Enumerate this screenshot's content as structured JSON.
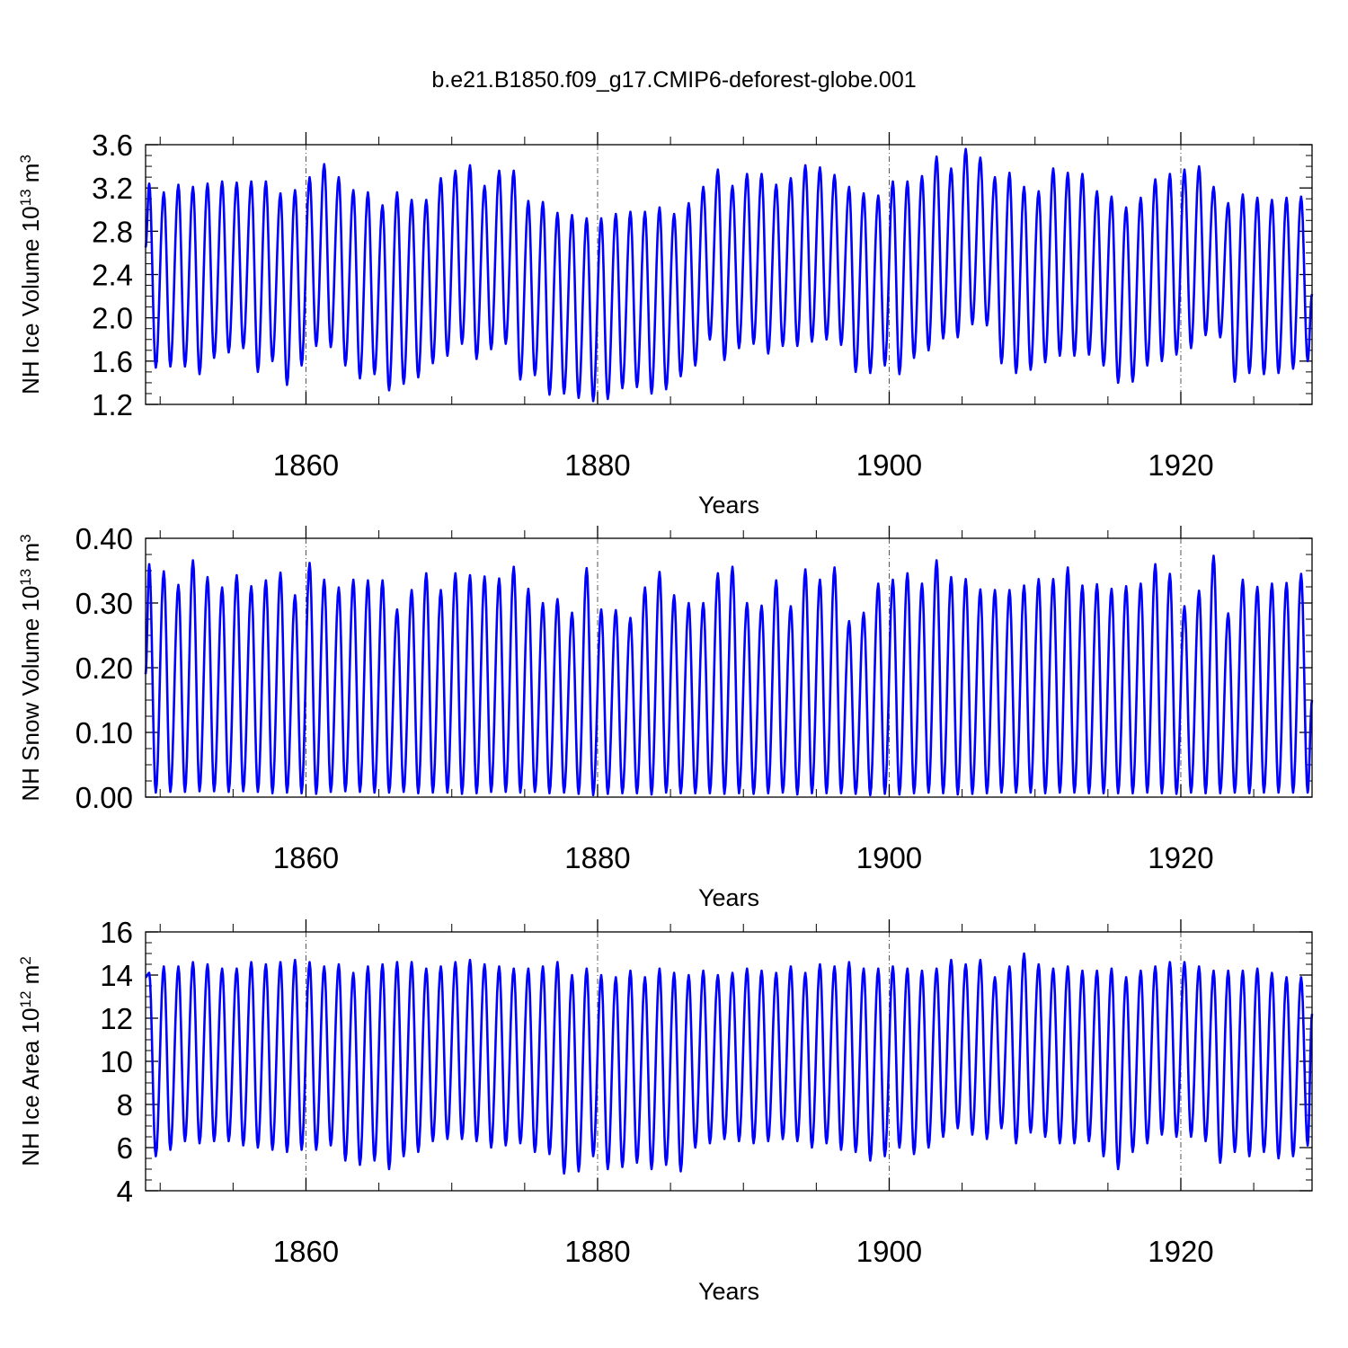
{
  "title": "b.e21.B1850.f09_g17.CMIP6-deforest-globe.001",
  "line_color": "#0000ff",
  "chart_data": [
    {
      "type": "line",
      "ylabel_main": "NH Ice Volume 10",
      "ylabel_sup": "13",
      "ylabel_unit": "m",
      "ylabel_unit_sup": "3",
      "xlabel": "Years",
      "xlim": [
        1849.0,
        1929.0
      ],
      "ylim": [
        1.2,
        3.6
      ],
      "yticks": [
        "1.2",
        "1.6",
        "2.0",
        "2.4",
        "2.8",
        "3.2",
        "3.6"
      ],
      "xticks": [
        "1860",
        "1880",
        "1900",
        "1920"
      ],
      "grid": "dashed vertical lines at 1860, 1880, 1900, 1920",
      "series": [
        {
          "name": "NH Ice Volume",
          "cycle": "monthly seasonal cycle, one peak and one trough per year",
          "years": [
            1849,
            1850,
            1851,
            1852,
            1853,
            1854,
            1855,
            1856,
            1857,
            1858,
            1859,
            1860,
            1861,
            1862,
            1863,
            1864,
            1865,
            1866,
            1867,
            1868,
            1869,
            1870,
            1871,
            1872,
            1873,
            1874,
            1875,
            1876,
            1877,
            1878,
            1879,
            1880,
            1881,
            1882,
            1883,
            1884,
            1885,
            1886,
            1887,
            1888,
            1889,
            1890,
            1891,
            1892,
            1893,
            1894,
            1895,
            1896,
            1897,
            1898,
            1899,
            1900,
            1901,
            1902,
            1903,
            1904,
            1905,
            1906,
            1907,
            1908,
            1909,
            1910,
            1911,
            1912,
            1913,
            1914,
            1915,
            1916,
            1917,
            1918,
            1919,
            1920,
            1921,
            1922,
            1923,
            1924,
            1925,
            1926,
            1927,
            1928
          ],
          "annual_max": [
            3.24,
            3.16,
            3.23,
            3.21,
            3.24,
            3.26,
            3.25,
            3.26,
            3.26,
            3.15,
            3.18,
            3.3,
            3.42,
            3.3,
            3.18,
            3.16,
            3.04,
            3.16,
            3.09,
            3.09,
            3.29,
            3.36,
            3.41,
            3.22,
            3.36,
            3.36,
            3.08,
            3.07,
            2.97,
            2.95,
            2.92,
            2.92,
            2.96,
            2.98,
            2.98,
            3.02,
            2.96,
            3.06,
            3.21,
            3.37,
            3.22,
            3.33,
            3.33,
            3.23,
            3.29,
            3.41,
            3.39,
            3.32,
            3.21,
            3.15,
            3.13,
            3.26,
            3.26,
            3.31,
            3.49,
            3.38,
            3.56,
            3.48,
            3.3,
            3.34,
            3.21,
            3.17,
            3.38,
            3.34,
            3.33,
            3.17,
            3.12,
            3.02,
            3.11,
            3.28,
            3.33,
            3.37,
            3.4,
            3.21,
            3.06,
            3.14,
            3.11,
            3.09,
            3.11,
            3.12
          ],
          "annual_min": [
            1.54,
            1.55,
            1.55,
            1.48,
            1.63,
            1.68,
            1.72,
            1.5,
            1.6,
            1.38,
            1.56,
            1.74,
            1.73,
            1.56,
            1.44,
            1.48,
            1.33,
            1.39,
            1.45,
            1.58,
            1.65,
            1.76,
            1.62,
            1.71,
            1.76,
            1.43,
            1.47,
            1.29,
            1.3,
            1.26,
            1.23,
            1.25,
            1.35,
            1.36,
            1.3,
            1.34,
            1.46,
            1.56,
            1.8,
            1.61,
            1.72,
            1.76,
            1.67,
            1.74,
            1.74,
            1.78,
            1.8,
            1.75,
            1.5,
            1.49,
            1.56,
            1.48,
            1.63,
            1.7,
            1.81,
            1.82,
            1.94,
            1.93,
            1.58,
            1.49,
            1.52,
            1.59,
            1.65,
            1.65,
            1.66,
            1.56,
            1.4,
            1.41,
            1.56,
            1.6,
            1.66,
            1.72,
            1.84,
            1.82,
            1.41,
            1.49,
            1.48,
            1.49,
            1.53,
            1.6
          ],
          "start_value": 2.65,
          "end_value": 2.22
        }
      ]
    },
    {
      "type": "line",
      "ylabel_main": "NH Snow Volume 10",
      "ylabel_sup": "13",
      "ylabel_unit": "m",
      "ylabel_unit_sup": "3",
      "xlabel": "Years",
      "xlim": [
        1849.0,
        1929.0
      ],
      "ylim": [
        0.0,
        0.4
      ],
      "yticks": [
        "0.00",
        "0.10",
        "0.20",
        "0.30",
        "0.40"
      ],
      "xticks": [
        "1860",
        "1880",
        "1900",
        "1920"
      ],
      "grid": "dashed vertical lines at 1860, 1880, 1900, 1920",
      "series": [
        {
          "name": "NH Snow Volume",
          "cycle": "monthly seasonal cycle, one peak and one trough per year",
          "years": [
            1849,
            1850,
            1851,
            1852,
            1853,
            1854,
            1855,
            1856,
            1857,
            1858,
            1859,
            1860,
            1861,
            1862,
            1863,
            1864,
            1865,
            1866,
            1867,
            1868,
            1869,
            1870,
            1871,
            1872,
            1873,
            1874,
            1875,
            1876,
            1877,
            1878,
            1879,
            1880,
            1881,
            1882,
            1883,
            1884,
            1885,
            1886,
            1887,
            1888,
            1889,
            1890,
            1891,
            1892,
            1893,
            1894,
            1895,
            1896,
            1897,
            1898,
            1899,
            1900,
            1901,
            1902,
            1903,
            1904,
            1905,
            1906,
            1907,
            1908,
            1909,
            1910,
            1911,
            1912,
            1913,
            1914,
            1915,
            1916,
            1917,
            1918,
            1919,
            1920,
            1921,
            1922,
            1923,
            1924,
            1925,
            1926,
            1927,
            1928
          ],
          "annual_max": [
            0.36,
            0.349,
            0.328,
            0.366,
            0.34,
            0.324,
            0.343,
            0.326,
            0.335,
            0.347,
            0.312,
            0.362,
            0.336,
            0.324,
            0.336,
            0.335,
            0.335,
            0.29,
            0.32,
            0.346,
            0.32,
            0.346,
            0.343,
            0.341,
            0.338,
            0.356,
            0.322,
            0.3,
            0.306,
            0.285,
            0.354,
            0.29,
            0.289,
            0.277,
            0.324,
            0.348,
            0.312,
            0.3,
            0.3,
            0.346,
            0.356,
            0.3,
            0.296,
            0.335,
            0.295,
            0.352,
            0.336,
            0.355,
            0.272,
            0.285,
            0.33,
            0.336,
            0.346,
            0.33,
            0.366,
            0.34,
            0.337,
            0.321,
            0.32,
            0.32,
            0.327,
            0.337,
            0.337,
            0.355,
            0.327,
            0.329,
            0.322,
            0.326,
            0.33,
            0.36,
            0.345,
            0.295,
            0.319,
            0.373,
            0.284,
            0.336,
            0.325,
            0.33,
            0.331,
            0.345
          ],
          "annual_min": [
            0.007,
            0.008,
            0.008,
            0.009,
            0.009,
            0.008,
            0.009,
            0.008,
            0.006,
            0.007,
            0.006,
            0.005,
            0.008,
            0.009,
            0.008,
            0.007,
            0.007,
            0.008,
            0.006,
            0.007,
            0.007,
            0.005,
            0.006,
            0.008,
            0.008,
            0.007,
            0.008,
            0.006,
            0.007,
            0.005,
            0.003,
            0.005,
            0.006,
            0.006,
            0.004,
            0.007,
            0.006,
            0.006,
            0.006,
            0.005,
            0.006,
            0.005,
            0.006,
            0.007,
            0.004,
            0.006,
            0.006,
            0.006,
            0.005,
            0.003,
            0.005,
            0.004,
            0.006,
            0.007,
            0.006,
            0.004,
            0.005,
            0.006,
            0.007,
            0.007,
            0.007,
            0.006,
            0.007,
            0.007,
            0.006,
            0.006,
            0.006,
            0.006,
            0.007,
            0.006,
            0.005,
            0.007,
            0.006,
            0.006,
            0.007,
            0.006,
            0.007,
            0.007,
            0.007,
            0.007
          ],
          "start_value": 0.19,
          "end_value": 0.15
        }
      ]
    },
    {
      "type": "line",
      "ylabel_main": "NH Ice Area 10",
      "ylabel_sup": "12",
      "ylabel_unit": "m",
      "ylabel_unit_sup": "2",
      "xlabel": "Years",
      "xlim": [
        1849.0,
        1929.0
      ],
      "ylim": [
        4,
        16
      ],
      "yticks": [
        "4",
        "6",
        "8",
        "10",
        "12",
        "14",
        "16"
      ],
      "xticks": [
        "1860",
        "1880",
        "1900",
        "1920"
      ],
      "grid": "dashed vertical lines at 1860, 1880, 1900, 1920",
      "series": [
        {
          "name": "NH Ice Area",
          "cycle": "monthly seasonal cycle, one peak and one trough per year",
          "years": [
            1849,
            1850,
            1851,
            1852,
            1853,
            1854,
            1855,
            1856,
            1857,
            1858,
            1859,
            1860,
            1861,
            1862,
            1863,
            1864,
            1865,
            1866,
            1867,
            1868,
            1869,
            1870,
            1871,
            1872,
            1873,
            1874,
            1875,
            1876,
            1877,
            1878,
            1879,
            1880,
            1881,
            1882,
            1883,
            1884,
            1885,
            1886,
            1887,
            1888,
            1889,
            1890,
            1891,
            1892,
            1893,
            1894,
            1895,
            1896,
            1897,
            1898,
            1899,
            1900,
            1901,
            1902,
            1903,
            1904,
            1905,
            1906,
            1907,
            1908,
            1909,
            1910,
            1911,
            1912,
            1913,
            1914,
            1915,
            1916,
            1917,
            1918,
            1919,
            1920,
            1921,
            1922,
            1923,
            1924,
            1925,
            1926,
            1927,
            1928
          ],
          "annual_max": [
            14.1,
            14.4,
            14.4,
            14.6,
            14.5,
            14.3,
            14.3,
            14.6,
            14.5,
            14.6,
            14.7,
            14.6,
            14.4,
            14.5,
            14.1,
            14.4,
            14.5,
            14.6,
            14.6,
            14.3,
            14.4,
            14.6,
            14.7,
            14.5,
            14.4,
            14.3,
            14.3,
            14.4,
            14.6,
            14.0,
            14.3,
            14.0,
            13.9,
            14.2,
            13.9,
            14.3,
            14.1,
            14.0,
            14.2,
            14.0,
            14.1,
            14.3,
            14.2,
            14.1,
            14.4,
            14.1,
            14.5,
            14.4,
            14.6,
            14.3,
            14.3,
            14.4,
            14.3,
            14.2,
            14.3,
            14.7,
            14.5,
            14.7,
            13.9,
            14.4,
            15.0,
            14.5,
            14.3,
            14.4,
            14.2,
            14.2,
            14.3,
            13.9,
            14.2,
            14.4,
            14.6,
            14.6,
            14.4,
            14.2,
            14.2,
            14.2,
            14.3,
            14.1,
            13.9,
            13.9
          ],
          "annual_min": [
            5.6,
            5.9,
            6.3,
            6.2,
            6.3,
            6.3,
            6.1,
            6.0,
            5.9,
            5.8,
            5.9,
            5.9,
            6.1,
            5.4,
            5.2,
            5.4,
            5.0,
            5.6,
            5.8,
            6.3,
            6.4,
            6.4,
            6.3,
            6.0,
            6.1,
            6.2,
            5.8,
            5.7,
            4.8,
            4.9,
            5.6,
            5.0,
            5.1,
            5.3,
            5.0,
            5.2,
            4.9,
            6.0,
            6.2,
            6.4,
            6.3,
            6.2,
            6.3,
            6.4,
            6.3,
            6.0,
            6.2,
            5.9,
            5.8,
            5.4,
            5.6,
            6.0,
            5.7,
            6.0,
            6.5,
            6.9,
            6.6,
            6.4,
            6.9,
            6.2,
            6.7,
            6.5,
            6.2,
            6.2,
            6.3,
            5.6,
            5.0,
            5.8,
            6.2,
            6.6,
            6.5,
            6.5,
            6.3,
            5.3,
            5.8,
            5.6,
            5.8,
            5.5,
            5.6,
            6.1
          ],
          "start_value": 13.9,
          "end_value": 12.2
        }
      ]
    }
  ]
}
